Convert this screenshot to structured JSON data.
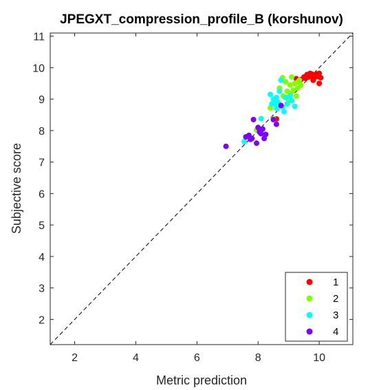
{
  "chart_data": {
    "type": "scatter",
    "title": "JPEGXT_compression_profile_B (korshunov)",
    "xlabel": "Metric prediction",
    "ylabel": "Subjective score",
    "xlim": [
      1.2,
      11.1
    ],
    "ylim": [
      1.2,
      11.1
    ],
    "xticks": [
      2,
      4,
      6,
      8,
      10
    ],
    "yticks": [
      2,
      3,
      4,
      5,
      6,
      7,
      8,
      9,
      10,
      11
    ],
    "diagonal_reference_line": true,
    "legend_position": "bottom-right",
    "series": [
      {
        "name": "1",
        "color": "#ff0000",
        "points": [
          [
            9.25,
            9.65
          ],
          [
            9.4,
            9.62
          ],
          [
            9.5,
            9.7
          ],
          [
            9.6,
            9.78
          ],
          [
            9.7,
            9.72
          ],
          [
            9.75,
            9.8
          ],
          [
            9.82,
            9.66
          ],
          [
            9.85,
            9.75
          ],
          [
            9.9,
            9.8
          ],
          [
            9.95,
            9.72
          ],
          [
            10.0,
            9.82
          ],
          [
            10.05,
            9.68
          ],
          [
            10.0,
            9.5
          ],
          [
            9.8,
            9.6
          ],
          [
            9.65,
            9.7
          ],
          [
            9.92,
            9.76
          ],
          [
            9.7,
            9.82
          ],
          [
            9.55,
            9.66
          ],
          [
            8.6,
            8.37
          ]
        ]
      },
      {
        "name": "2",
        "color": "#80ff00",
        "points": [
          [
            8.8,
            9.68
          ],
          [
            8.9,
            9.55
          ],
          [
            8.7,
            9.35
          ],
          [
            8.82,
            9.1
          ],
          [
            8.95,
            9.25
          ],
          [
            9.05,
            9.45
          ],
          [
            9.1,
            9.7
          ],
          [
            9.2,
            9.5
          ],
          [
            9.3,
            9.35
          ],
          [
            9.4,
            9.45
          ],
          [
            9.25,
            9.1
          ],
          [
            9.15,
            9.28
          ],
          [
            9.35,
            9.6
          ],
          [
            9.0,
            8.95
          ],
          [
            8.6,
            8.72
          ],
          [
            8.4,
            8.72
          ],
          [
            7.95,
            8.02
          ],
          [
            8.5,
            8.38
          ],
          [
            9.3,
            9.55
          ],
          [
            9.05,
            9.18
          ]
        ]
      },
      {
        "name": "3",
        "color": "#00ffff",
        "points": [
          [
            7.55,
            7.65
          ],
          [
            8.1,
            8.38
          ],
          [
            8.4,
            9.15
          ],
          [
            8.5,
            9.0
          ],
          [
            8.55,
            8.85
          ],
          [
            8.6,
            9.05
          ],
          [
            8.65,
            8.9
          ],
          [
            8.75,
            9.6
          ],
          [
            8.8,
            8.75
          ],
          [
            8.85,
            8.6
          ],
          [
            8.9,
            9.05
          ],
          [
            8.95,
            8.85
          ],
          [
            9.05,
            9.1
          ],
          [
            9.1,
            8.95
          ],
          [
            9.2,
            8.77
          ],
          [
            8.7,
            9.25
          ],
          [
            8.45,
            8.85
          ],
          [
            8.62,
            8.7
          ]
        ]
      },
      {
        "name": "4",
        "color": "#8000ff",
        "points": [
          [
            6.95,
            7.5
          ],
          [
            7.6,
            7.8
          ],
          [
            7.7,
            7.85
          ],
          [
            7.8,
            7.75
          ],
          [
            7.85,
            8.35
          ],
          [
            7.95,
            7.6
          ],
          [
            8.0,
            8.1
          ],
          [
            8.05,
            8.0
          ],
          [
            8.1,
            7.9
          ],
          [
            8.15,
            8.05
          ],
          [
            8.2,
            7.75
          ],
          [
            8.25,
            7.88
          ],
          [
            8.5,
            8.35
          ],
          [
            8.6,
            8.2
          ],
          [
            8.75,
            8.8
          ],
          [
            8.05,
            7.95
          ],
          [
            7.75,
            7.72
          ]
        ]
      }
    ]
  }
}
